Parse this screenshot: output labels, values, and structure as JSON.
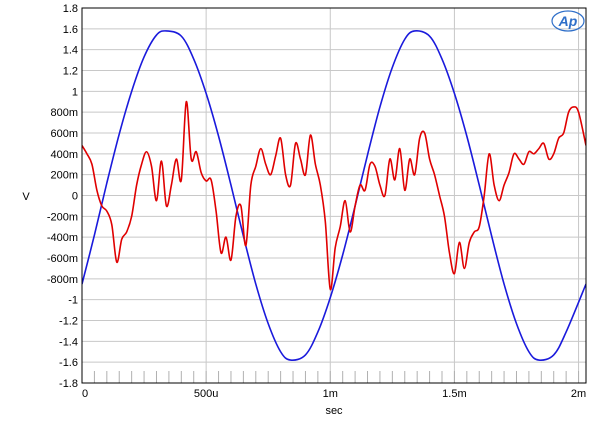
{
  "chart_data": {
    "type": "line",
    "xlabel": "sec",
    "ylabel": "V",
    "xlim": [
      0,
      0.00203
    ],
    "ylim": [
      -1.8,
      1.8
    ],
    "grid": true,
    "x_ticks": [
      {
        "value": 0,
        "label": "0"
      },
      {
        "value": 0.0005,
        "label": "500u"
      },
      {
        "value": 0.001,
        "label": "1m"
      },
      {
        "value": 0.0015,
        "label": "1.5m"
      },
      {
        "value": 0.002,
        "label": "2m"
      }
    ],
    "y_ticks": [
      {
        "value": 1.8,
        "label": "1.8"
      },
      {
        "value": 1.6,
        "label": "1.6"
      },
      {
        "value": 1.4,
        "label": "1.4"
      },
      {
        "value": 1.2,
        "label": "1.2"
      },
      {
        "value": 1.0,
        "label": "1"
      },
      {
        "value": 0.8,
        "label": "800m"
      },
      {
        "value": 0.6,
        "label": "600m"
      },
      {
        "value": 0.4,
        "label": "400m"
      },
      {
        "value": 0.2,
        "label": "200m"
      },
      {
        "value": 0,
        "label": "0"
      },
      {
        "value": -0.2,
        "label": "-200m"
      },
      {
        "value": -0.4,
        "label": "-400m"
      },
      {
        "value": -0.6,
        "label": "-600m"
      },
      {
        "value": -0.8,
        "label": "-800m"
      },
      {
        "value": -1.0,
        "label": "-1"
      },
      {
        "value": -1.2,
        "label": "-1.2"
      },
      {
        "value": -1.4,
        "label": "-1.4"
      },
      {
        "value": -1.6,
        "label": "-1.6"
      },
      {
        "value": -1.8,
        "label": "-1.8"
      }
    ],
    "series": [
      {
        "color": "#1a1adc",
        "x": [
          0,
          5e-05,
          0.0001,
          0.00015,
          0.0002,
          0.00025,
          0.0003,
          0.00034,
          0.0004,
          0.00045,
          0.0005,
          0.00055,
          0.0006,
          0.00065,
          0.0007,
          0.00075,
          0.0008,
          0.00084,
          0.0009,
          0.00095,
          0.001,
          0.00105,
          0.0011,
          0.00115,
          0.0012,
          0.00125,
          0.0013,
          0.00134,
          0.0014,
          0.00145,
          0.0015,
          0.00155,
          0.0016,
          0.00165,
          0.0017,
          0.00175,
          0.0018,
          0.00184,
          0.0019,
          0.00195,
          0.00203
        ],
        "y": [
          -0.85,
          -0.38,
          0.12,
          0.59,
          1.0,
          1.33,
          1.54,
          1.58,
          1.53,
          1.31,
          0.98,
          0.57,
          0.1,
          -0.39,
          -0.85,
          -1.23,
          -1.5,
          -1.58,
          -1.53,
          -1.31,
          -0.98,
          -0.57,
          -0.1,
          0.39,
          0.85,
          1.23,
          1.5,
          1.58,
          1.53,
          1.31,
          0.98,
          0.57,
          0.1,
          -0.39,
          -0.85,
          -1.23,
          -1.5,
          -1.58,
          -1.53,
          -1.31,
          -0.85
        ]
      },
      {
        "color": "#e00000",
        "x": [
          0,
          2e-05,
          4e-05,
          6e-05,
          8e-05,
          0.0001,
          0.00012,
          0.00014,
          0.00016,
          0.00018,
          0.0002,
          0.00022,
          0.00024,
          0.00026,
          0.00028,
          0.0003,
          0.00032,
          0.00034,
          0.00036,
          0.00038,
          0.0004,
          0.00042,
          0.00044,
          0.00046,
          0.00048,
          0.0005,
          0.00052,
          0.00054,
          0.00056,
          0.00058,
          0.0006,
          0.00062,
          0.00064,
          0.00066,
          0.00068,
          0.0007,
          0.00072,
          0.00074,
          0.00076,
          0.00078,
          0.0008,
          0.00082,
          0.00084,
          0.00086,
          0.00088,
          0.0009,
          0.00092,
          0.00094,
          0.00096,
          0.00098,
          0.001,
          0.00102,
          0.00104,
          0.00106,
          0.00108,
          0.0011,
          0.00112,
          0.00114,
          0.00116,
          0.00118,
          0.0012,
          0.00122,
          0.00124,
          0.00126,
          0.00128,
          0.0013,
          0.00132,
          0.00134,
          0.00136,
          0.00138,
          0.0014,
          0.00142,
          0.00144,
          0.00146,
          0.00148,
          0.0015,
          0.00152,
          0.00154,
          0.00156,
          0.00158,
          0.0016,
          0.00162,
          0.00164,
          0.00166,
          0.00168,
          0.0017,
          0.00172,
          0.00174,
          0.00176,
          0.00178,
          0.0018,
          0.00182,
          0.00184,
          0.00186,
          0.00188,
          0.0019,
          0.00192,
          0.00194,
          0.00196,
          0.00198,
          0.002,
          0.00203
        ],
        "y": [
          0.48,
          0.4,
          0.3,
          0.05,
          -0.1,
          -0.15,
          -0.28,
          -0.64,
          -0.42,
          -0.35,
          -0.2,
          0.1,
          0.3,
          0.42,
          0.28,
          -0.05,
          0.33,
          -0.1,
          0.1,
          0.35,
          0.15,
          0.9,
          0.35,
          0.42,
          0.22,
          0.14,
          0.15,
          -0.15,
          -0.55,
          -0.4,
          -0.62,
          -0.2,
          -0.1,
          -0.48,
          0.1,
          0.28,
          0.45,
          0.3,
          0.2,
          0.38,
          0.55,
          0.2,
          0.1,
          0.5,
          0.35,
          0.2,
          0.58,
          0.3,
          0.1,
          -0.25,
          -0.9,
          -0.5,
          -0.3,
          -0.05,
          -0.35,
          -0.1,
          0.1,
          0.05,
          0.3,
          0.28,
          0.1,
          0.0,
          0.35,
          0.15,
          0.45,
          0.05,
          0.35,
          0.2,
          0.55,
          0.6,
          0.35,
          0.2,
          0.0,
          -0.2,
          -0.55,
          -0.75,
          -0.45,
          -0.7,
          -0.45,
          -0.35,
          -0.3,
          0.0,
          0.4,
          0.1,
          -0.05,
          0.1,
          0.22,
          0.4,
          0.35,
          0.3,
          0.42,
          0.4,
          0.45,
          0.5,
          0.35,
          0.4,
          0.55,
          0.6,
          0.8,
          0.85,
          0.8,
          0.48
        ]
      }
    ]
  },
  "logo": {
    "text": "Ap"
  }
}
